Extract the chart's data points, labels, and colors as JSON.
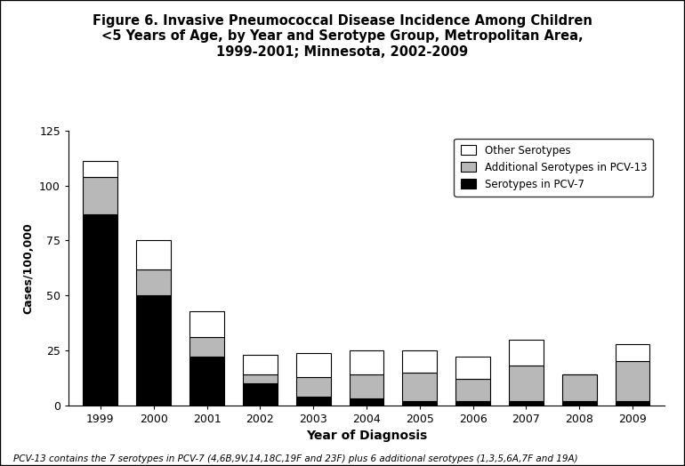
{
  "years": [
    "1999",
    "2000",
    "2001",
    "2002",
    "2003",
    "2004",
    "2005",
    "2006",
    "2007",
    "2008",
    "2009"
  ],
  "pcv7": [
    87,
    50,
    22,
    10,
    4,
    3,
    2,
    2,
    2,
    2,
    2
  ],
  "pcv13_add": [
    17,
    12,
    9,
    4,
    9,
    11,
    13,
    10,
    16,
    12,
    18
  ],
  "other": [
    7,
    13,
    12,
    9,
    11,
    11,
    10,
    10,
    12,
    0,
    8
  ],
  "title_line1": "Figure 6. Invasive Pneumococcal Disease Incidence Among Children",
  "title_line2": "<5 Years of Age, by Year and Serotype Group, Metropolitan Area,",
  "title_line3": "1999-2001; Minnesota, 2002-2009",
  "ylabel": "Cases/100,000",
  "xlabel": "Year of Diagnosis",
  "ylim": [
    0,
    125
  ],
  "yticks": [
    0,
    25,
    50,
    75,
    100,
    125
  ],
  "legend_labels": [
    "Other Serotypes",
    "Additional Serotypes in PCV-13",
    "Serotypes in PCV-7"
  ],
  "color_pcv7": "#000000",
  "color_pcv13": "#b8b8b8",
  "color_other": "#ffffff",
  "footnote": "PCV-13 contains the 7 serotypes in PCV-7 (4,6B,9V,14,18C,19F and 23F) plus 6 additional serotypes (1,3,5,6A,7F and 19A)",
  "background_color": "#ffffff",
  "bar_edge_color": "#000000",
  "bar_width": 0.65
}
